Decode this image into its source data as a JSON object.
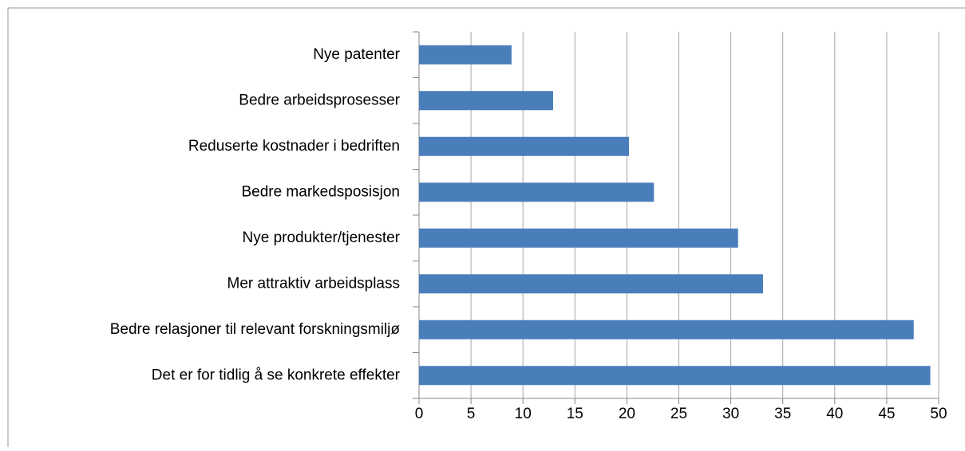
{
  "chart_data": {
    "type": "barh",
    "categories": [
      "Nye patenter",
      "Bedre arbeidsprosesser",
      "Reduserte kostnader i bedriften",
      "Bedre markedsposisjon",
      "Nye produkter/tjenester",
      "Mer attraktiv arbeidsplass",
      "Bedre relasjoner til relevant forskningsmiljø",
      "Det er for tidlig å se konkrete effekter"
    ],
    "values": [
      8.9,
      12.9,
      20.2,
      22.6,
      30.7,
      33.1,
      47.6,
      49.2
    ],
    "color": "#4a7ebb",
    "xlim": [
      0,
      50
    ],
    "xticks": [
      0,
      5,
      10,
      15,
      20,
      25,
      30,
      35,
      40,
      45,
      50
    ],
    "grid": true
  }
}
